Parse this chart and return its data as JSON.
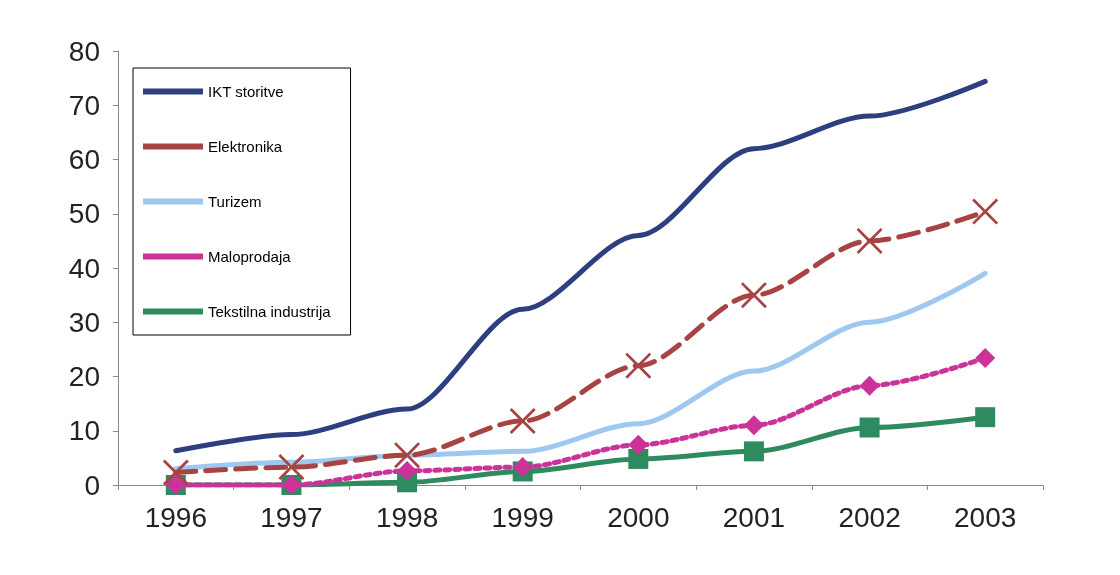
{
  "chart_data": {
    "type": "line",
    "categories": [
      "1996",
      "1997",
      "1998",
      "1999",
      "2000",
      "2001",
      "2002",
      "2003"
    ],
    "series": [
      {
        "name": "IKT storitve",
        "color": "#2e3f7f",
        "marker": "none",
        "line_style": "solid",
        "values": [
          6.3,
          9.3,
          14,
          32.4,
          46,
          62,
          68,
          74.4
        ]
      },
      {
        "name": "Elektronika",
        "color": "#a84343",
        "marker": "cross",
        "line_style": "dashed",
        "values": [
          2.3,
          3.3,
          5.5,
          11.8,
          22,
          35,
          45,
          50.4
        ]
      },
      {
        "name": "Turizem",
        "color": "#9fc8f0",
        "marker": "none",
        "line_style": "solid",
        "values": [
          3,
          4.2,
          5.5,
          6.2,
          11.3,
          21,
          30,
          39
        ]
      },
      {
        "name": "Maloprodaja",
        "color": "#cc3399",
        "marker": "diamond",
        "line_style": "dotted",
        "values": [
          0,
          0,
          2.6,
          3.3,
          7.4,
          11,
          18.3,
          23.4
        ]
      },
      {
        "name": "Tekstilna industrija",
        "color": "#2e8b60",
        "marker": "square",
        "line_style": "solid",
        "values": [
          0,
          0,
          0.5,
          2.5,
          4.8,
          6.2,
          10.6,
          12.5
        ]
      }
    ],
    "ylim": [
      0,
      80
    ],
    "yticks": [
      0,
      10,
      20,
      30,
      40,
      50,
      60,
      70,
      80
    ],
    "grid": false,
    "legend": "top left"
  }
}
